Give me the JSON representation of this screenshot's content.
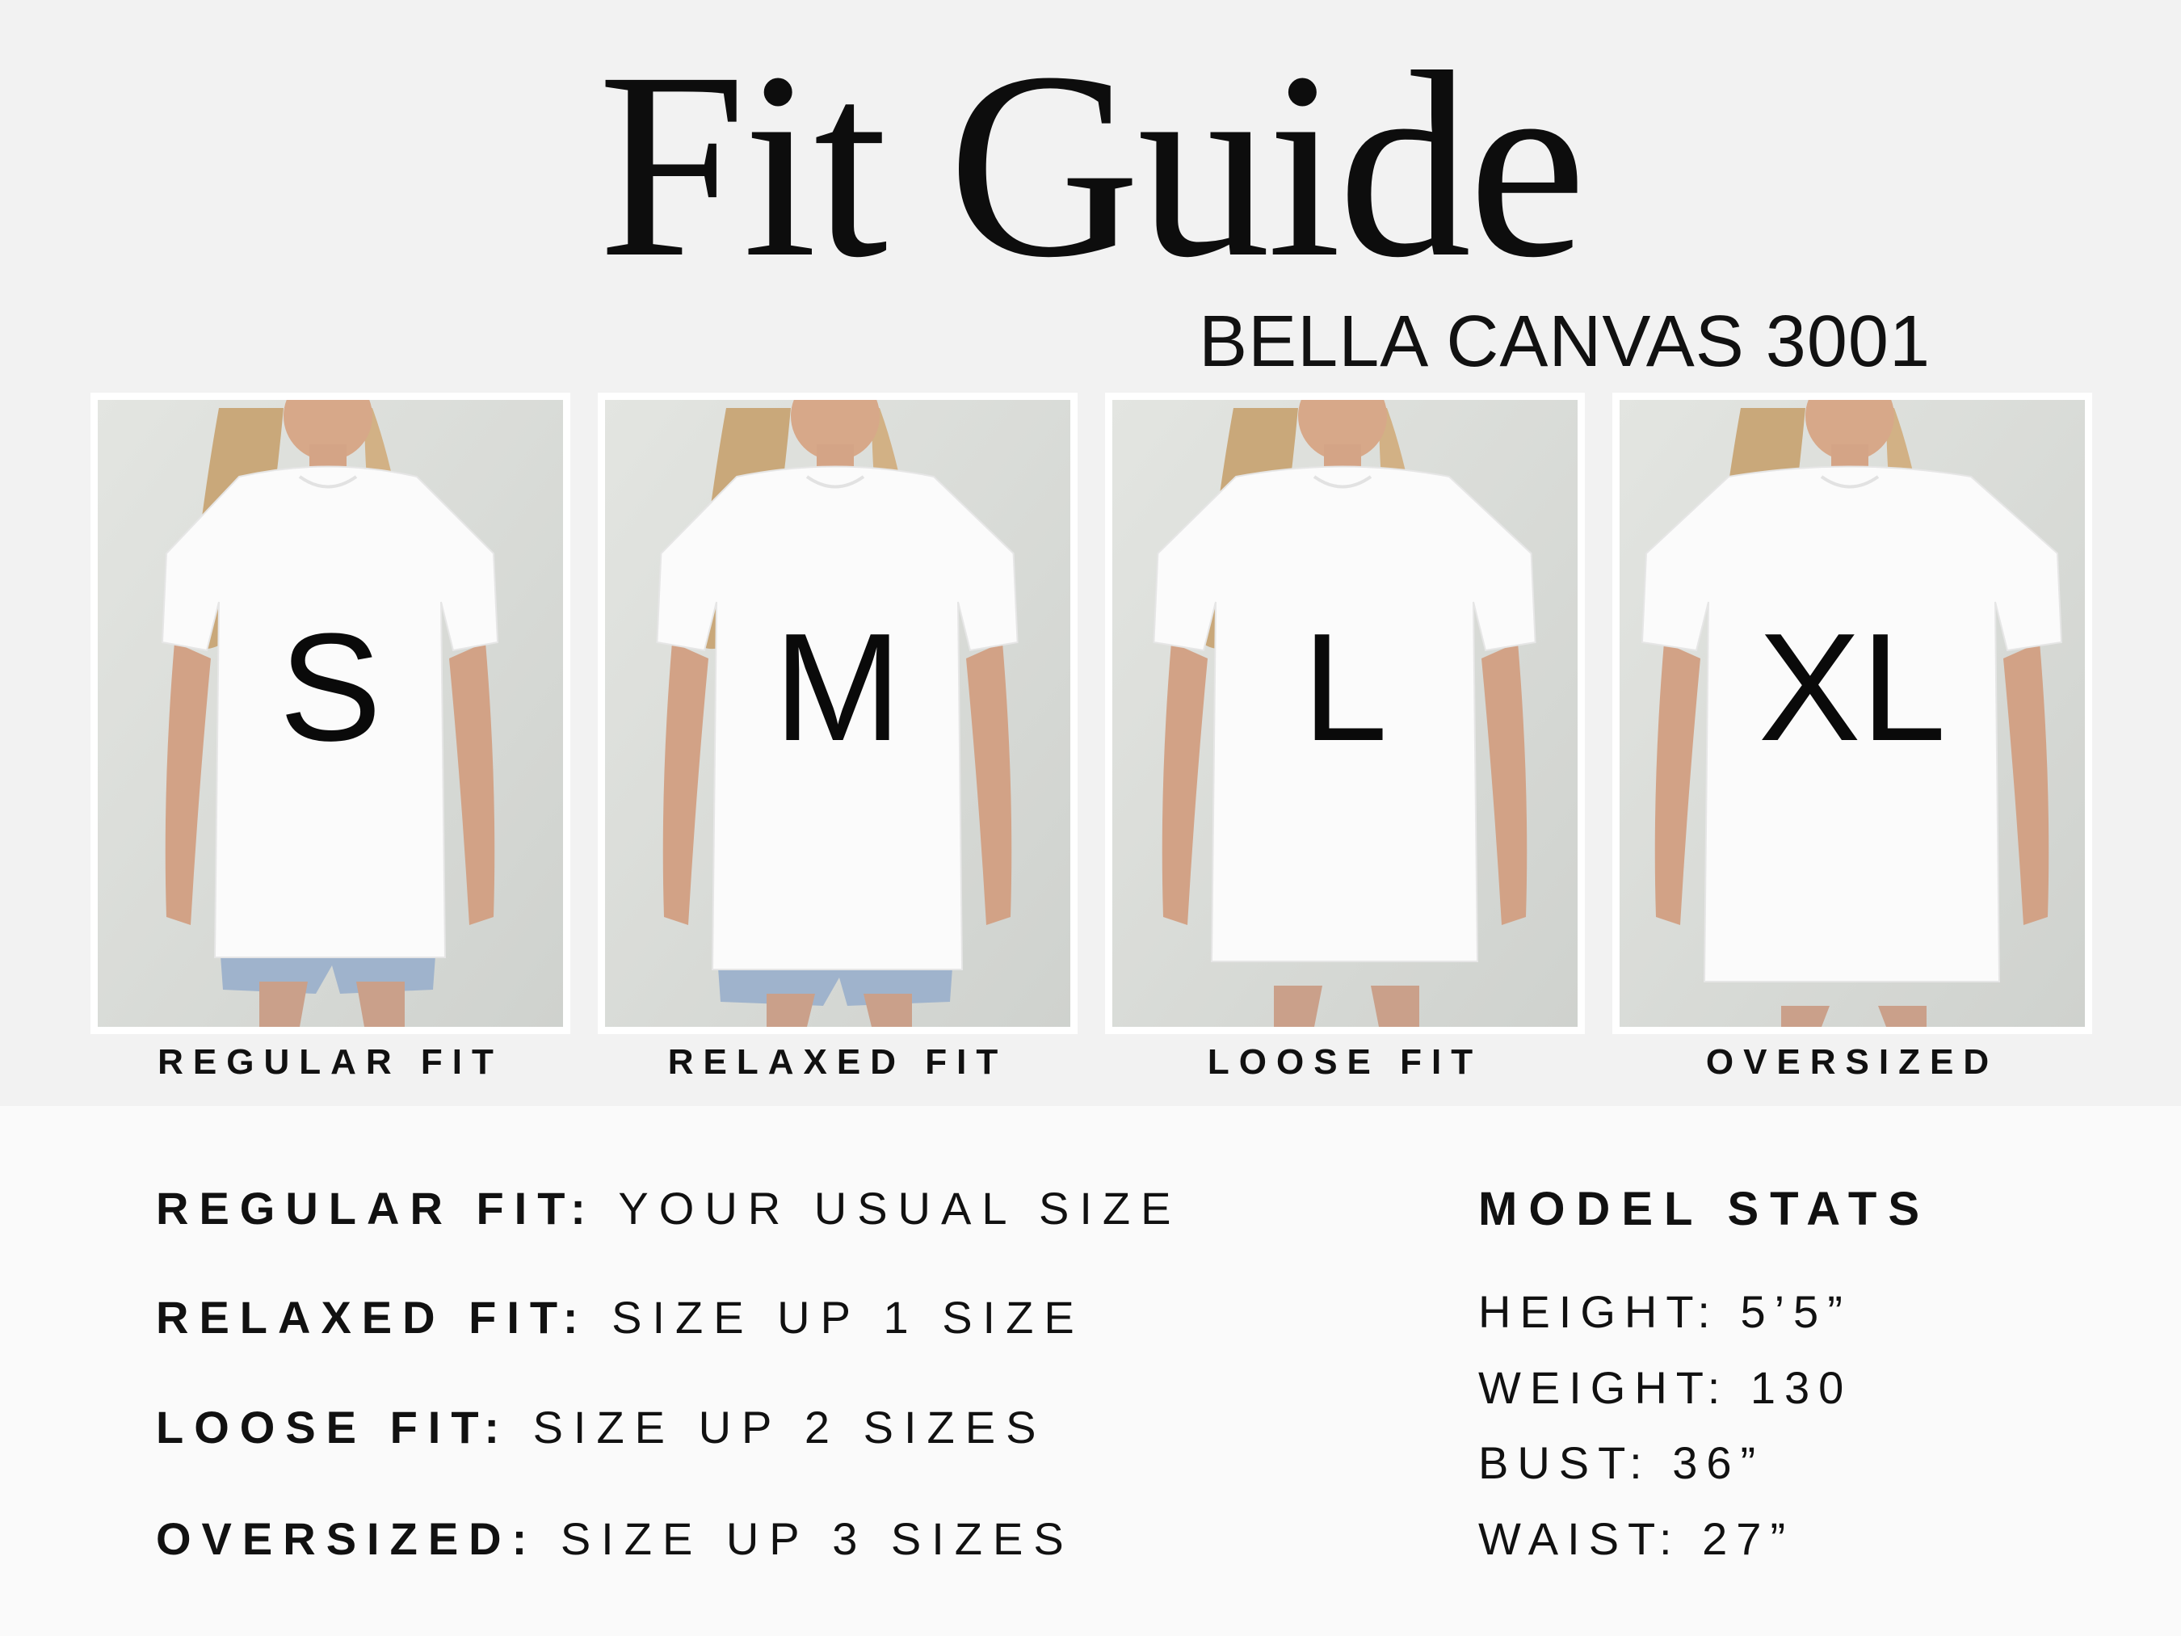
{
  "title": "Fit Guide",
  "subtitle": "BELLA CANVAS 3001",
  "panels": [
    {
      "size": "S",
      "fit": "REGULAR FIT"
    },
    {
      "size": "M",
      "fit": "RELAXED FIT"
    },
    {
      "size": "L",
      "fit": "LOOSE FIT"
    },
    {
      "size": "XL",
      "fit": "OVERSIZED"
    }
  ],
  "rules": [
    {
      "label": "REGULAR FIT:",
      "text": "YOUR USUAL SIZE"
    },
    {
      "label": "RELAXED FIT:",
      "text": "SIZE UP 1 SIZE"
    },
    {
      "label": "LOOSE FIT:",
      "text": "SIZE UP 2 SIZES"
    },
    {
      "label": "OVERSIZED:",
      "text": "SIZE UP 3 SIZES"
    }
  ],
  "model_stats": {
    "title": "MODEL STATS",
    "lines": [
      "HEIGHT: 5’5”",
      "WEIGHT: 130",
      "BUST: 36”",
      "WAIST: 27”"
    ]
  },
  "colors": {
    "background": "#f2f2f2",
    "lower_background": "#fafafa",
    "text": "#111111",
    "photo_background": "#dcdfdb"
  }
}
